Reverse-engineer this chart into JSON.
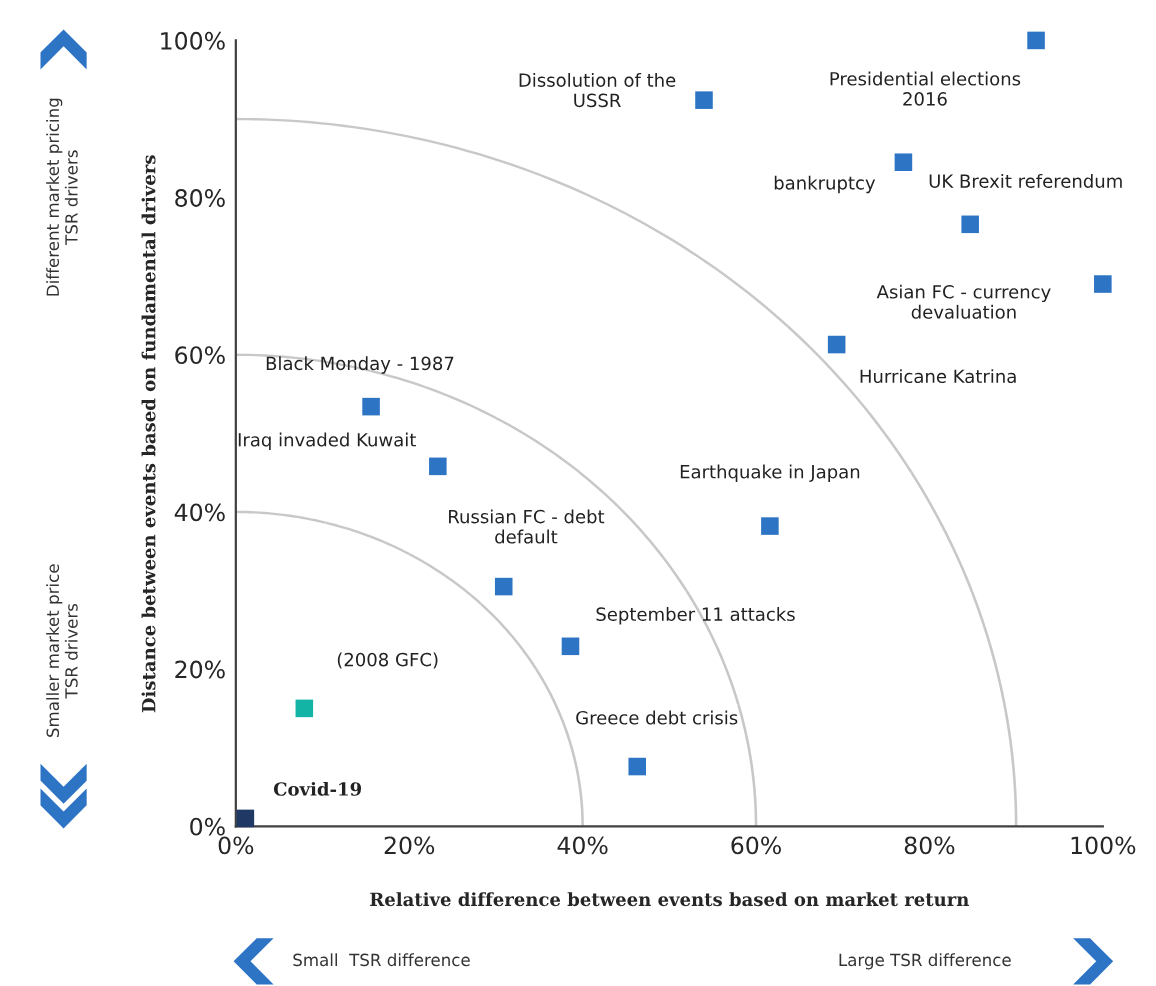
{
  "chart_data": {
    "type": "scatter",
    "xlabel": "Relative difference between events based on market return",
    "ylabel": "Distance between events based on fundamental drivers",
    "x": [
      1.1,
      7.9,
      15.6,
      23.3,
      30.9,
      38.6,
      46.3,
      61.6,
      54,
      77,
      69.3,
      84.7,
      92.3,
      100
    ],
    "values": [
      1,
      15,
      53.4,
      45.8,
      30.5,
      22.9,
      7.6,
      38.2,
      92.4,
      84.5,
      61.3,
      76.6,
      100,
      69
    ],
    "colors": [
      "#1f3864",
      "#13b3a6",
      "#2e74c5",
      "#2e74c5",
      "#2e74c5",
      "#2e74c5",
      "#2e74c5",
      "#2e74c5",
      "#2e74c5",
      "#2e74c5",
      "#2e74c5",
      "#2e74c5",
      "#2e74c5",
      "#2e74c5"
    ],
    "marker": "square",
    "xlim": [
      0,
      100
    ],
    "ylim": [
      0,
      100
    ],
    "xticks": [
      {
        "value": 0,
        "label": "0%"
      },
      {
        "value": 20,
        "label": "20%"
      },
      {
        "value": 40,
        "label": "40%"
      },
      {
        "value": 60,
        "label": "60%"
      },
      {
        "value": 80,
        "label": "80%"
      },
      {
        "value": 100,
        "label": "100%"
      }
    ],
    "yticks": [
      {
        "value": 0,
        "label": "0%"
      },
      {
        "value": 20,
        "label": "20%"
      },
      {
        "value": 40,
        "label": "40%"
      },
      {
        "value": 60,
        "label": "60%"
      },
      {
        "value": 80,
        "label": "80%"
      },
      {
        "value": 100,
        "label": "100%"
      }
    ],
    "grid": false,
    "annotations": [
      {
        "text": "Covid-19",
        "x": 1.1,
        "y": 1
      },
      {
        "text": "(2008 GFC)",
        "x": 7.9,
        "y": 15
      },
      {
        "text": "Black Monday - 1987",
        "x": 15.6,
        "y": 53.4
      },
      {
        "text": "Iraq invaded Kuwait",
        "x": 23.3,
        "y": 45.8
      },
      {
        "text": "Russian FC - debt\ndefault",
        "x": 30.9,
        "y": 30.5
      },
      {
        "text": "September 11 attacks",
        "x": 38.6,
        "y": 22.9
      },
      {
        "text": "Greece debt crisis",
        "x": 46.3,
        "y": 7.6
      },
      {
        "text": "Earthquake in Japan",
        "x": 61.6,
        "y": 38.2
      },
      {
        "text": "Dissolution of the\nUSSR",
        "x": 54,
        "y": 92.4
      },
      {
        "text": "bankruptcy",
        "x": 77,
        "y": 84.5
      },
      {
        "text": "Hurricane Katrina",
        "x": 69.3,
        "y": 61.3
      },
      {
        "text": "UK Brexit referendum",
        "x": 84.7,
        "y": 76.6
      },
      {
        "text": "Presidential elections\n2016",
        "x": 92.3,
        "y": 100
      },
      {
        "text": "Asian FC - currency\ndevaluation",
        "x": 100,
        "y": 69
      },
      "Different market pricing\nTSR drivers",
      "Smaller market price\nTSR drivers",
      "Small  TSR difference",
      "Large TSR difference"
    ]
  }
}
